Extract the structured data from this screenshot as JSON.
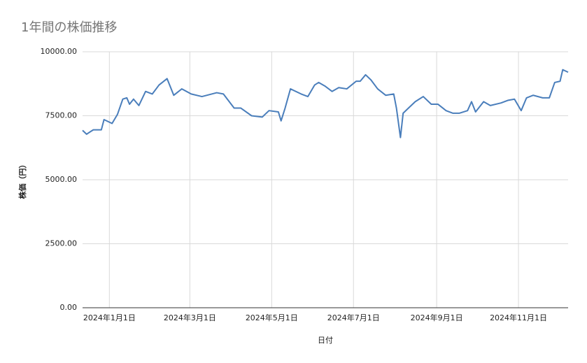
{
  "chart_data": {
    "type": "line",
    "title": "1年間の株価推移",
    "x_label": "日付",
    "y_label": "株価（円）",
    "color": "#4a7ebb",
    "grid": true,
    "x": [
      "2023-12-12",
      "2023-12-15",
      "2023-12-20",
      "2023-12-26",
      "2023-12-28",
      "2024-01-03",
      "2024-01-07",
      "2024-01-11",
      "2024-01-14",
      "2024-01-16",
      "2024-01-19",
      "2024-01-23",
      "2024-01-28",
      "2024-02-02",
      "2024-02-07",
      "2024-02-13",
      "2024-02-18",
      "2024-02-24",
      "2024-03-02",
      "2024-03-10",
      "2024-03-21",
      "2024-03-26",
      "2024-04-03",
      "2024-04-08",
      "2024-04-16",
      "2024-04-24",
      "2024-04-29",
      "2024-05-06",
      "2024-05-08",
      "2024-05-11",
      "2024-05-15",
      "2024-05-23",
      "2024-05-28",
      "2024-06-02",
      "2024-06-05",
      "2024-06-10",
      "2024-06-15",
      "2024-06-20",
      "2024-06-26",
      "2024-07-03",
      "2024-07-06",
      "2024-07-10",
      "2024-07-14",
      "2024-07-19",
      "2024-07-25",
      "2024-07-31",
      "2024-08-02",
      "2024-08-05",
      "2024-08-07",
      "2024-08-11",
      "2024-08-16",
      "2024-08-22",
      "2024-08-28",
      "2024-09-02",
      "2024-09-08",
      "2024-09-13",
      "2024-09-18",
      "2024-09-24",
      "2024-09-27",
      "2024-09-30",
      "2024-10-06",
      "2024-10-11",
      "2024-10-19",
      "2024-10-24",
      "2024-10-29",
      "2024-11-03",
      "2024-11-07",
      "2024-11-12",
      "2024-11-19",
      "2024-11-24",
      "2024-11-28",
      "2024-12-02",
      "2024-12-04",
      "2024-12-08"
    ],
    "values": [
      6930,
      6780,
      6950,
      6950,
      7350,
      7200,
      7550,
      8150,
      8200,
      7950,
      8150,
      7900,
      8450,
      8350,
      8700,
      8950,
      8300,
      8550,
      8350,
      8250,
      8400,
      8350,
      7800,
      7800,
      7500,
      7450,
      7700,
      7650,
      7300,
      7800,
      8550,
      8350,
      8250,
      8700,
      8800,
      8650,
      8450,
      8600,
      8550,
      8850,
      8850,
      9100,
      8900,
      8550,
      8300,
      8350,
      7800,
      6650,
      7600,
      7800,
      8050,
      8250,
      7950,
      7950,
      7700,
      7600,
      7600,
      7700,
      8050,
      7650,
      8050,
      7900,
      8000,
      8100,
      8150,
      7700,
      8200,
      8300,
      8200,
      8200,
      8800,
      8850,
      9300,
      9200
    ],
    "xlim": [
      "2023-12-12",
      "2024-12-08"
    ],
    "xticks": [
      {
        "value": "2024-01-01",
        "label": "2024年1月1日"
      },
      {
        "value": "2024-03-01",
        "label": "2024年3月1日"
      },
      {
        "value": "2024-05-01",
        "label": "2024年5月1日"
      },
      {
        "value": "2024-07-01",
        "label": "2024年7月1日"
      },
      {
        "value": "2024-09-01",
        "label": "2024年9月1日"
      },
      {
        "value": "2024-11-01",
        "label": "2024年11月1日"
      }
    ],
    "ylim": [
      0,
      10000
    ],
    "yticks": [
      {
        "value": 0,
        "label": "0.00"
      },
      {
        "value": 2500,
        "label": "2500.00"
      },
      {
        "value": 5000,
        "label": "5000.00"
      },
      {
        "value": 7500,
        "label": "7500.00"
      },
      {
        "value": 10000,
        "label": "10000.00"
      }
    ]
  }
}
